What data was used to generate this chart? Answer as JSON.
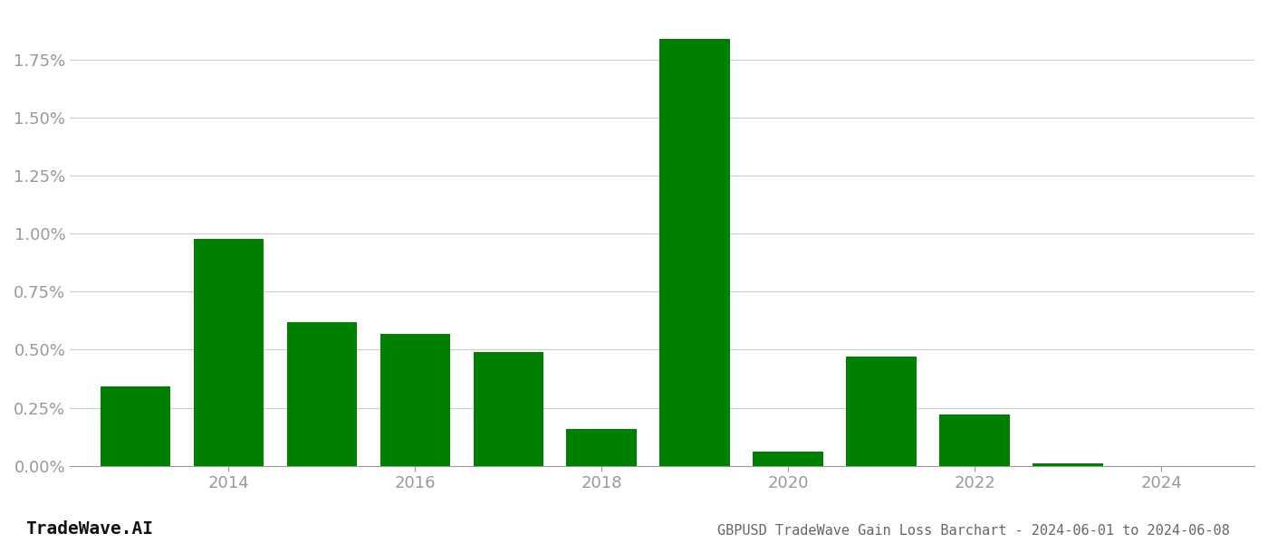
{
  "years": [
    2013,
    2014,
    2015,
    2016,
    2017,
    2018,
    2019,
    2020,
    2021,
    2022,
    2023,
    2024
  ],
  "values": [
    0.0034,
    0.0098,
    0.0062,
    0.0057,
    0.0049,
    0.0016,
    0.0184,
    0.0006,
    0.0047,
    0.0022,
    0.0001,
    0.0
  ],
  "bar_color": "#008000",
  "background_color": "#ffffff",
  "grid_color": "#cccccc",
  "axis_label_color": "#999999",
  "title_text": "GBPUSD TradeWave Gain Loss Barchart - 2024-06-01 to 2024-06-08",
  "watermark_text": "TradeWave.AI",
  "ylim": [
    0.0,
    0.0195
  ],
  "yticks": [
    0.0,
    0.0025,
    0.005,
    0.0075,
    0.01,
    0.0125,
    0.015,
    0.0175
  ],
  "ytick_labels": [
    "0.00%",
    "0.25%",
    "0.50%",
    "0.75%",
    "1.00%",
    "1.25%",
    "1.50%",
    "1.75%"
  ],
  "xticks": [
    2014,
    2016,
    2018,
    2020,
    2022,
    2024
  ],
  "xtick_labels": [
    "2014",
    "2016",
    "2018",
    "2020",
    "2022",
    "2024"
  ],
  "bar_width": 0.75,
  "title_fontsize": 11,
  "tick_fontsize": 13,
  "watermark_fontsize": 14,
  "xlim": [
    2012.3,
    2025.0
  ]
}
